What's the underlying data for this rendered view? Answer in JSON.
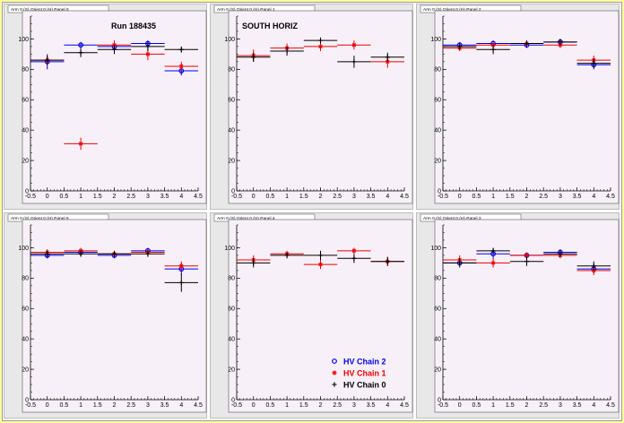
{
  "figure": {
    "colors": {
      "chain2": "#0000ee",
      "chain1": "#ee0000",
      "chain0": "#000000",
      "frame": "#f8f0f8",
      "pad": "#e8e8e8",
      "background": "#ffff99"
    },
    "legend": {
      "panel_index": 4,
      "placement": "bottom-right",
      "entries": [
        {
          "series": "chain2",
          "label": "HV Chain 2",
          "marker": "circle"
        },
        {
          "series": "chain1",
          "label": "HV Chain 1",
          "marker": "star"
        },
        {
          "series": "chain0",
          "label": "HV Chain 0",
          "marker": "cross"
        }
      ]
    }
  },
  "chart_data": [
    {
      "type": "scatter",
      "tab_title": "Arm 0 (S) Orient 0 (H) Panel 0",
      "annotation": "Run 188435",
      "xlim": [
        -0.5,
        4.5
      ],
      "ylim": [
        0,
        115
      ],
      "xticks": [
        "-0.5",
        "0",
        "0.5",
        "1",
        "1.5",
        "2",
        "2.5",
        "3",
        "3.5",
        "4",
        "4.5"
      ],
      "yticks": [
        "0",
        "20",
        "40",
        "60",
        "80",
        "100"
      ],
      "grid": false,
      "series": [
        {
          "key": "chain2",
          "x": [
            0,
            1,
            2,
            3,
            4
          ],
          "y": [
            85,
            96,
            95,
            97,
            79
          ],
          "yerr": [
            5,
            2,
            3,
            2,
            3
          ]
        },
        {
          "key": "chain1",
          "x": [
            0,
            1,
            2,
            3,
            4
          ],
          "y": [
            86,
            31,
            96,
            90,
            82
          ],
          "yerr": [
            3,
            4,
            3,
            4,
            3
          ]
        },
        {
          "key": "chain0",
          "x": [
            0,
            1,
            2,
            3,
            4
          ],
          "y": [
            86,
            91,
            93,
            95,
            93
          ],
          "yerr": [
            3,
            3,
            3,
            3,
            2
          ]
        }
      ]
    },
    {
      "type": "scatter",
      "tab_title": "Arm 0 (S) Orient 0 (H) Panel 1",
      "annotation": "SOUTH HORIZ",
      "xlim": [
        -0.5,
        4.5
      ],
      "ylim": [
        0,
        115
      ],
      "xticks": [
        "-0.5",
        "0",
        "0.5",
        "1",
        "1.5",
        "2",
        "2.5",
        "3",
        "3.5",
        "4",
        "4.5"
      ],
      "yticks": [
        "0",
        "20",
        "40",
        "60",
        "80",
        "100"
      ],
      "grid": false,
      "series": [
        {
          "key": "chain1",
          "x": [
            0,
            1,
            2,
            3,
            4
          ],
          "y": [
            89,
            94,
            95,
            96,
            85
          ],
          "yerr": [
            4,
            3,
            3,
            3,
            4
          ]
        },
        {
          "key": "chain0",
          "x": [
            0,
            1,
            2,
            3,
            4
          ],
          "y": [
            88,
            92,
            99,
            85,
            88
          ],
          "yerr": [
            3,
            3,
            2,
            4,
            3
          ]
        }
      ]
    },
    {
      "type": "scatter",
      "tab_title": "Arm 0 (S) Orient 0 (H) Panel 2",
      "annotation": "",
      "xlim": [
        -0.5,
        4.5
      ],
      "ylim": [
        0,
        115
      ],
      "xticks": [
        "-0.5",
        "0",
        "0.5",
        "1",
        "1.5",
        "2",
        "2.5",
        "3",
        "3.5",
        "4",
        "4.5"
      ],
      "yticks": [
        "0",
        "20",
        "40",
        "60",
        "80",
        "100"
      ],
      "grid": false,
      "series": [
        {
          "key": "chain2",
          "x": [
            0,
            1,
            2,
            3,
            4
          ],
          "y": [
            96,
            97,
            96,
            98,
            83
          ],
          "yerr": [
            2,
            2,
            2,
            2,
            3
          ]
        },
        {
          "key": "chain1",
          "x": [
            0,
            1,
            2,
            3,
            4
          ],
          "y": [
            94,
            96,
            97,
            96,
            86
          ],
          "yerr": [
            2,
            2,
            2,
            2,
            3
          ]
        },
        {
          "key": "chain0",
          "x": [
            0,
            1,
            2,
            3,
            4
          ],
          "y": [
            95,
            93,
            97,
            98,
            84
          ],
          "yerr": [
            2,
            3,
            2,
            2,
            3
          ]
        }
      ]
    },
    {
      "type": "scatter",
      "tab_title": "Arm 0 (S) Orient 0 (H) Panel 5",
      "annotation": "",
      "xlim": [
        -0.5,
        4.5
      ],
      "ylim": [
        0,
        115
      ],
      "xticks": [
        "-0.5",
        "0",
        "0.5",
        "1",
        "1.5",
        "2",
        "2.5",
        "3",
        "3.5",
        "4",
        "4.5"
      ],
      "yticks": [
        "0",
        "20",
        "40",
        "60",
        "80",
        "100"
      ],
      "grid": false,
      "series": [
        {
          "key": "chain2",
          "x": [
            0,
            1,
            2,
            3,
            4
          ],
          "y": [
            95,
            97,
            95,
            98,
            86
          ],
          "yerr": [
            2,
            2,
            2,
            2,
            4
          ]
        },
        {
          "key": "chain1",
          "x": [
            0,
            1,
            2,
            3,
            4
          ],
          "y": [
            97,
            98,
            96,
            97,
            88
          ],
          "yerr": [
            2,
            2,
            2,
            2,
            3
          ]
        },
        {
          "key": "chain0",
          "x": [
            0,
            1,
            2,
            3,
            4
          ],
          "y": [
            96,
            96,
            96,
            96,
            77
          ],
          "yerr": [
            2,
            2,
            2,
            2,
            6
          ]
        }
      ]
    },
    {
      "type": "scatter",
      "tab_title": "Arm 0 (S) Orient 0 (H) Panel 4",
      "annotation": "",
      "xlim": [
        -0.5,
        4.5
      ],
      "ylim": [
        0,
        115
      ],
      "xticks": [
        "-0.5",
        "0",
        "0.5",
        "1",
        "1.5",
        "2",
        "2.5",
        "3",
        "3.5",
        "4",
        "4.5"
      ],
      "yticks": [
        "0",
        "20",
        "40",
        "60",
        "80",
        "100"
      ],
      "grid": false,
      "series": [
        {
          "key": "chain1",
          "x": [
            0,
            1,
            2,
            3,
            4
          ],
          "y": [
            92,
            96,
            89,
            98,
            91
          ],
          "yerr": [
            3,
            2,
            3,
            2,
            3
          ]
        },
        {
          "key": "chain0",
          "x": [
            0,
            1,
            2,
            3,
            4
          ],
          "y": [
            90,
            95,
            95,
            93,
            91
          ],
          "yerr": [
            3,
            2,
            3,
            3,
            3
          ]
        }
      ]
    },
    {
      "type": "scatter",
      "tab_title": "Arm 0 (S) Orient 0 (H) Panel 3",
      "annotation": "",
      "xlim": [
        -0.5,
        4.5
      ],
      "ylim": [
        0,
        115
      ],
      "xticks": [
        "-0.5",
        "0",
        "0.5",
        "1",
        "1.5",
        "2",
        "2.5",
        "3",
        "3.5",
        "4",
        "4.5"
      ],
      "yticks": [
        "0",
        "20",
        "40",
        "60",
        "80",
        "100"
      ],
      "grid": false,
      "series": [
        {
          "key": "chain2",
          "x": [
            0,
            1,
            2,
            3,
            4
          ],
          "y": [
            90,
            96,
            95,
            97,
            86
          ],
          "yerr": [
            2,
            3,
            2,
            2,
            3
          ]
        },
        {
          "key": "chain1",
          "x": [
            0,
            1,
            2,
            3,
            4
          ],
          "y": [
            92,
            90,
            95,
            95,
            85
          ],
          "yerr": [
            3,
            3,
            2,
            2,
            3
          ]
        },
        {
          "key": "chain0",
          "x": [
            0,
            1,
            2,
            3,
            4
          ],
          "y": [
            90,
            98,
            91,
            96,
            88
          ],
          "yerr": [
            3,
            2,
            3,
            2,
            3
          ]
        }
      ]
    }
  ]
}
